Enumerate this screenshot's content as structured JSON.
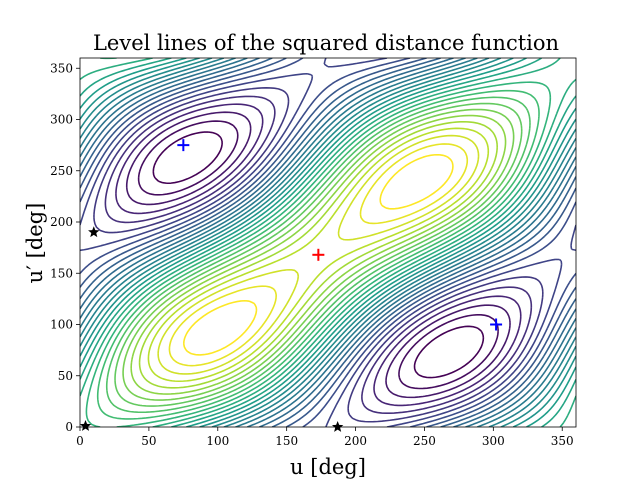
{
  "chart_data": {
    "type": "contour",
    "title": "Level lines of the squared distance function",
    "xlabel": "u [deg]",
    "ylabel": "u′ [deg]",
    "xlim": [
      0,
      360
    ],
    "ylim": [
      0,
      360
    ],
    "xticks": [
      0,
      50,
      100,
      150,
      200,
      250,
      300,
      350
    ],
    "yticks": [
      0,
      50,
      100,
      150,
      200,
      250,
      300,
      350
    ],
    "grid": false,
    "colormap": "viridis",
    "levels": 30,
    "minima_markers": {
      "color": "#0000ff",
      "marker": "plus",
      "points": [
        [
          75,
          275
        ],
        [
          302,
          100
        ]
      ]
    },
    "maximum_marker": {
      "color": "#ff0000",
      "marker": "plus",
      "points": [
        [
          173,
          168
        ]
      ]
    },
    "saddle_markers": {
      "color": "#000000",
      "marker": "star",
      "points": [
        [
          10,
          190
        ],
        [
          4,
          1
        ],
        [
          187,
          0
        ]
      ]
    }
  }
}
